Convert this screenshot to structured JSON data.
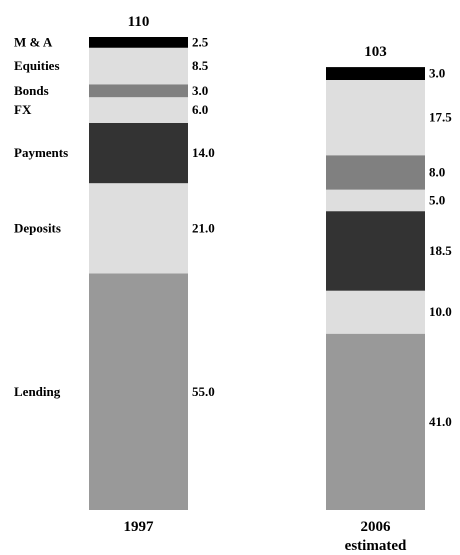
{
  "chart_data": {
    "type": "bar",
    "stacked": true,
    "categories": [
      "1997",
      "2006"
    ],
    "category_sublabels": [
      "",
      "estimated"
    ],
    "totals": [
      110,
      103
    ],
    "series": [
      {
        "name": "Lending",
        "values": [
          55.0,
          41.0
        ],
        "color": "#999999"
      },
      {
        "name": "Deposits",
        "values": [
          21.0,
          10.0
        ],
        "color": "#dedede"
      },
      {
        "name": "Payments",
        "values": [
          14.0,
          18.5
        ],
        "color": "#333333"
      },
      {
        "name": "FX",
        "values": [
          6.0,
          5.0
        ],
        "color": "#dedede"
      },
      {
        "name": "Bonds",
        "values": [
          3.0,
          8.0
        ],
        "color": "#808080"
      },
      {
        "name": "Equities",
        "values": [
          8.5,
          17.5
        ],
        "color": "#dedede"
      },
      {
        "name": "M & A",
        "values": [
          2.5,
          3.0
        ],
        "color": "#000000"
      }
    ],
    "value_labels": [
      [
        "55.0",
        "41.0"
      ],
      [
        "21.0",
        "10.0"
      ],
      [
        "14.0",
        "18.5"
      ],
      [
        "6.0",
        "5.0"
      ],
      [
        "3.0",
        "8.0"
      ],
      [
        "8.5",
        "17.5"
      ],
      [
        "2.5",
        "3.0"
      ]
    ],
    "grid": false,
    "legend": "left-of-first-bar"
  }
}
